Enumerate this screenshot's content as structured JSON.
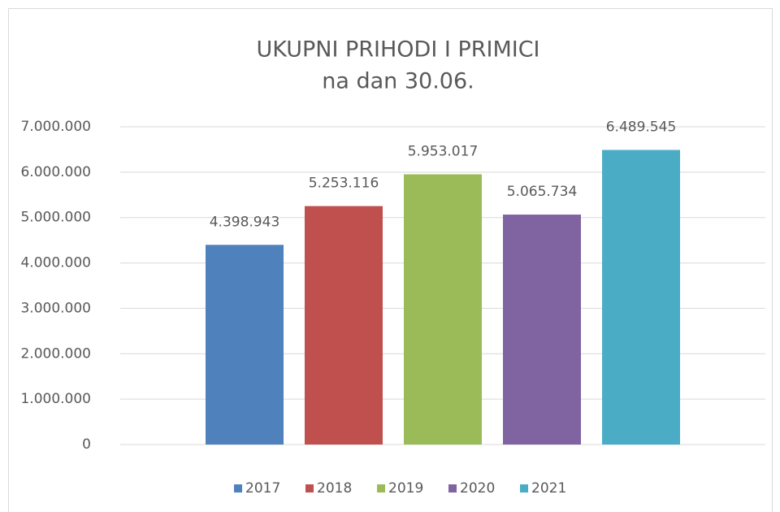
{
  "chart_data": {
    "type": "bar",
    "title": "UKUPNI PRIHODI I PRIMICI",
    "subtitle": "na dan 30.06.",
    "categories": [
      null
    ],
    "series": [
      {
        "name": "2017",
        "color": "#4f81bd",
        "values": [
          4398943
        ],
        "value_labels": [
          "4.398.943"
        ]
      },
      {
        "name": "2018",
        "color": "#c0504d",
        "values": [
          5253116
        ],
        "value_labels": [
          "5.253.116"
        ]
      },
      {
        "name": "2019",
        "color": "#9bbb59",
        "values": [
          5953017
        ],
        "value_labels": [
          "5.953.017"
        ]
      },
      {
        "name": "2020",
        "color": "#8064a2",
        "values": [
          5065734
        ],
        "value_labels": [
          "5.065.734"
        ]
      },
      {
        "name": "2021",
        "color": "#4bacc6",
        "values": [
          6489545
        ],
        "value_labels": [
          "6.489.545"
        ]
      }
    ],
    "ylim": [
      0,
      7000000
    ],
    "yticks": [
      0,
      {
        "value": 1000000,
        "label": "1.000.000"
      },
      {
        "value": 2000000,
        "label": "2.000.000"
      },
      {
        "value": 3000000,
        "label": "3.000.000"
      },
      {
        "value": 4000000,
        "label": "4.000.000"
      },
      {
        "value": 5000000,
        "label": "5.000.000"
      },
      {
        "value": 6000000,
        "label": "6.000.000"
      },
      {
        "value": 7000000,
        "label": "7.000.000"
      }
    ],
    "grid": true,
    "legend": "bottom"
  }
}
